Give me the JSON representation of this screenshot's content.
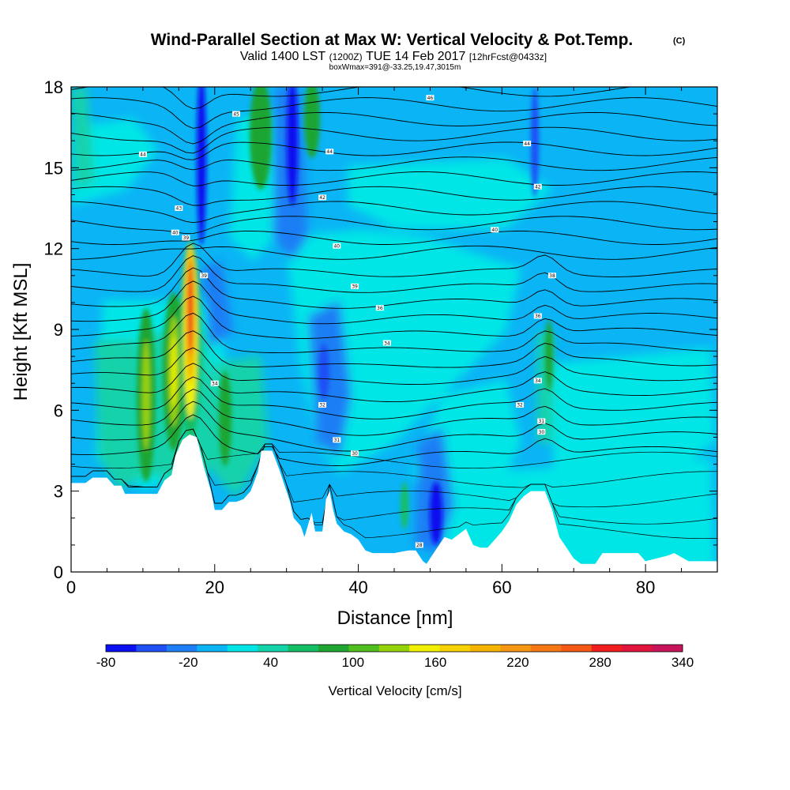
{
  "title": {
    "main": "Wind-Parallel Section at Max W: Vertical Velocity & Pot.Temp.",
    "copyright": "(C)",
    "valid_prefix": "Valid 1400 LST",
    "valid_utc": "(1200Z)",
    "valid_date": "TUE 14 Feb 2017",
    "forecast": "[12hrFcst@0433z]",
    "box_info": "boxWmax=391@-33.25,19.47,3015m"
  },
  "chart_data": {
    "type": "heatmap",
    "xlabel": "Distance [nm]",
    "ylabel": "Height [Kft MSL]",
    "xlim": [
      0,
      90
    ],
    "ylim": [
      0,
      18
    ],
    "x_ticks": [
      0,
      20,
      40,
      60,
      80
    ],
    "x_tick_labels": [
      "0",
      "20",
      "40",
      "60",
      "80"
    ],
    "y_ticks": [
      0,
      3,
      6,
      9,
      12,
      15,
      18
    ],
    "y_tick_labels": [
      "0",
      "3",
      "6",
      "9",
      "12",
      "15",
      "18"
    ],
    "colorbar": {
      "label": "Vertical Velocity [cm/s]",
      "tick_labels": [
        "-80",
        "-20",
        "40",
        "100",
        "160",
        "220",
        "280",
        "340"
      ],
      "colors": [
        "#0a10f0",
        "#1e50f5",
        "#1e7ef5",
        "#0ab4f5",
        "#00e6e6",
        "#14d2aa",
        "#14be64",
        "#1ea532",
        "#50be1e",
        "#96d20a",
        "#f0f000",
        "#f5d200",
        "#f5b400",
        "#f59614",
        "#f57814",
        "#f55a14",
        "#f01e1e",
        "#e1143c",
        "#c8145a"
      ]
    },
    "terrain_profile": [
      [
        0,
        3.3
      ],
      [
        2,
        3.3
      ],
      [
        3,
        3.5
      ],
      [
        5,
        3.5
      ],
      [
        6,
        3.2
      ],
      [
        7,
        3.2
      ],
      [
        7.5,
        2.9
      ],
      [
        12,
        2.9
      ],
      [
        13,
        3.4
      ],
      [
        14,
        3.6
      ],
      [
        14.5,
        4.3
      ],
      [
        15.5,
        4.9
      ],
      [
        16.5,
        5.1
      ],
      [
        17.5,
        5.0
      ],
      [
        18.5,
        3.9
      ],
      [
        19.5,
        3.0
      ],
      [
        20,
        2.3
      ],
      [
        21,
        2.3
      ],
      [
        22,
        2.6
      ],
      [
        23,
        2.6
      ],
      [
        24,
        2.7
      ],
      [
        25,
        3.0
      ],
      [
        26,
        3.7
      ],
      [
        26.5,
        4.5
      ],
      [
        28,
        4.5
      ],
      [
        29,
        3.8
      ],
      [
        29.5,
        3.4
      ],
      [
        30,
        3.0
      ],
      [
        30.5,
        2.6
      ],
      [
        31,
        2.0
      ],
      [
        32,
        1.7
      ],
      [
        32.5,
        1.3
      ],
      [
        33.5,
        2.2
      ],
      [
        34,
        1.5
      ],
      [
        35,
        1.5
      ],
      [
        35.5,
        2.7
      ],
      [
        36,
        3.0
      ],
      [
        36.5,
        2.3
      ],
      [
        37,
        1.8
      ],
      [
        38,
        1.5
      ],
      [
        39,
        1.4
      ],
      [
        40,
        1.2
      ],
      [
        41,
        0.8
      ],
      [
        42,
        0.7
      ],
      [
        45,
        0.7
      ],
      [
        47,
        0.8
      ],
      [
        48,
        0.8
      ],
      [
        49,
        0.4
      ],
      [
        49.5,
        0.3
      ],
      [
        50,
        0.5
      ],
      [
        51,
        0.9
      ],
      [
        52,
        1.3
      ],
      [
        53,
        1.2
      ],
      [
        55,
        1.6
      ],
      [
        56,
        1.0
      ],
      [
        57,
        0.9
      ],
      [
        58,
        0.9
      ],
      [
        59,
        1.2
      ],
      [
        60,
        1.5
      ],
      [
        61,
        1.9
      ],
      [
        62,
        2.5
      ],
      [
        63,
        2.8
      ],
      [
        64,
        3.0
      ],
      [
        66,
        3.0
      ],
      [
        67,
        2.3
      ],
      [
        68,
        1.3
      ],
      [
        69,
        0.9
      ],
      [
        70,
        0.5
      ],
      [
        71,
        0.3
      ],
      [
        73,
        0.3
      ],
      [
        74,
        0.7
      ],
      [
        79,
        0.7
      ],
      [
        80,
        0.4
      ],
      [
        83,
        0.6
      ],
      [
        84,
        0.7
      ],
      [
        86,
        0.4
      ],
      [
        90,
        0.4
      ]
    ],
    "contour_labels": [
      {
        "value": "44",
        "x": 10,
        "y": 15.5
      },
      {
        "value": "45",
        "x": 23,
        "y": 17.0
      },
      {
        "value": "46",
        "x": 50,
        "y": 17.6
      },
      {
        "value": "44",
        "x": 36,
        "y": 15.6
      },
      {
        "value": "44",
        "x": 63.5,
        "y": 15.9
      },
      {
        "value": "43",
        "x": 15,
        "y": 13.5
      },
      {
        "value": "42",
        "x": 35,
        "y": 13.9
      },
      {
        "value": "42",
        "x": 65,
        "y": 14.3
      },
      {
        "value": "40",
        "x": 14.5,
        "y": 12.6
      },
      {
        "value": "39",
        "x": 16,
        "y": 12.4
      },
      {
        "value": "40",
        "x": 59,
        "y": 12.7
      },
      {
        "value": "40",
        "x": 37,
        "y": 12.1
      },
      {
        "value": "39",
        "x": 18.5,
        "y": 11.0
      },
      {
        "value": "39",
        "x": 39.5,
        "y": 10.6
      },
      {
        "value": "38",
        "x": 67,
        "y": 11.0
      },
      {
        "value": "36",
        "x": 43,
        "y": 9.8
      },
      {
        "value": "36",
        "x": 65,
        "y": 9.5
      },
      {
        "value": "34",
        "x": 44,
        "y": 8.5
      },
      {
        "value": "34",
        "x": 20,
        "y": 7.0
      },
      {
        "value": "34",
        "x": 65,
        "y": 7.1
      },
      {
        "value": "32",
        "x": 35,
        "y": 6.2
      },
      {
        "value": "32",
        "x": 62.5,
        "y": 6.2
      },
      {
        "value": "31",
        "x": 65.5,
        "y": 5.6
      },
      {
        "value": "30",
        "x": 65.5,
        "y": 5.2
      },
      {
        "value": "31",
        "x": 37,
        "y": 4.9
      },
      {
        "value": "30",
        "x": 39.5,
        "y": 4.4
      },
      {
        "value": "28",
        "x": 48.5,
        "y": 1.0
      }
    ]
  }
}
